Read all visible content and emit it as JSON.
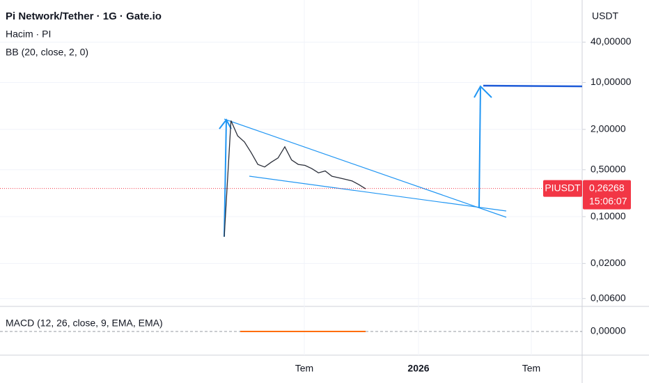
{
  "chart_data": {
    "type": "line",
    "title": "Pi Network/Tether · 1G · Gate.io",
    "subtitles": [
      "Hacim · PI",
      "BB (20, close, 2, 0)"
    ],
    "y_axis_unit": "USDT",
    "series": [
      {
        "name": "PIUSDT",
        "color": "#2a2e39",
        "values": [
          0.05,
          2.7,
          1.6,
          1.3,
          0.9,
          0.6,
          0.55,
          0.65,
          0.75,
          1.1,
          0.7,
          0.6,
          0.58,
          0.52,
          0.45,
          0.48,
          0.4,
          0.38,
          0.36,
          0.34,
          0.3,
          0.26
        ]
      }
    ],
    "last_price": {
      "value": 0.26268,
      "label": "0,26268",
      "symbol": "PIUSDT",
      "countdown": "15:06:07",
      "color": "#f23645"
    },
    "log_scale": true,
    "ylim": [
      0.00458,
      170
    ],
    "yticks": [
      {
        "value": 40,
        "label": "40,00000"
      },
      {
        "value": 10,
        "label": "10,00000"
      },
      {
        "value": 2,
        "label": "2,00000"
      },
      {
        "value": 0.5,
        "label": "0,50000"
      },
      {
        "value": 0.1,
        "label": "0,10000"
      },
      {
        "value": 0.02,
        "label": "0,02000"
      },
      {
        "value": 0.006,
        "label": "0,00600"
      }
    ],
    "x_labels": [
      "Tem",
      "2026",
      "Tem"
    ],
    "grid": true,
    "macd": {
      "title": "MACD (12, 26, close, 9, EMA, EMA)",
      "ytick": {
        "value": 0,
        "label": "0,00000"
      }
    }
  }
}
